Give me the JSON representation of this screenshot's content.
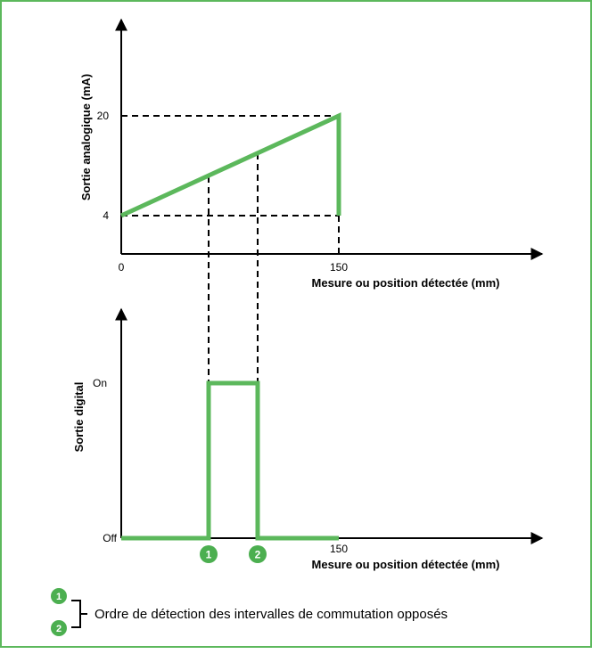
{
  "colors": {
    "frame": "#5cb85c",
    "signal": "#5cb85c",
    "axis": "#000000",
    "badge": "#4caf50"
  },
  "analog": {
    "ylabel": "Sortie analogique (mA)",
    "ytick_20": "20",
    "ytick_4": "4",
    "xtick_0": "0",
    "xtick_150": "150",
    "xlabel": "Mesure ou position détectée (mm)"
  },
  "digital": {
    "ylabel": "Sortie digital",
    "on_label": "On",
    "off_label": "Off",
    "xtick_150": "150",
    "xlabel": "Mesure ou position détectée (mm)",
    "marker1": "1",
    "marker2": "2"
  },
  "legend": {
    "badge1": "1",
    "badge2": "2",
    "text": "Ordre de détection des intervalles de commutation opposés"
  },
  "chart_data": [
    {
      "type": "line",
      "xlabel": "Mesure ou position détectée (mm)",
      "ylabel": "Sortie analogique (mA)",
      "x_ticks": [
        "0",
        "150"
      ],
      "y_ticks": [
        "4",
        "20"
      ],
      "series": [
        {
          "x": [
            0,
            150,
            150
          ],
          "y": [
            4,
            20,
            4
          ]
        }
      ]
    },
    {
      "type": "line",
      "xlabel": "Mesure ou position détectée (mm)",
      "ylabel": "Sortie digital",
      "x_ticks": [
        "150"
      ],
      "y_ticks": [
        "Off",
        "On"
      ],
      "series": [
        {
          "x": [
            0,
            1,
            1,
            2,
            2,
            3
          ],
          "y": [
            "Off",
            "Off",
            "On",
            "On",
            "Off",
            "Off"
          ]
        }
      ]
    }
  ]
}
